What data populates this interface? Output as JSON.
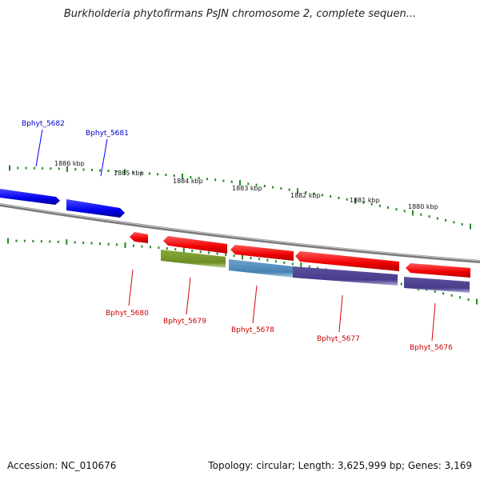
{
  "title": "Burkholderia phytofirmans PsJN chromosome 2, complete sequen...",
  "footer": {
    "accession": "Accession: NC_010676",
    "summary": "Topology: circular; Length: 3,625,999 bp; Genes: 3,169"
  },
  "colors": {
    "forward_gene": "#0000ff",
    "reverse_gene": "#ff0000",
    "cds_olive": "#6b8e23",
    "cds_blue": "#4682b4",
    "cds_purple": "#483d8b",
    "backbone": "#888888",
    "tick": "#228b22"
  },
  "scale_labels": [
    "1886 kbp",
    "1885 kbp",
    "1884 kbp",
    "1883 kbp",
    "1882 kbp",
    "1881 kbp",
    "1880 kbp"
  ],
  "genes": [
    {
      "label": "Bphyt_5682",
      "strand": "forward"
    },
    {
      "label": "Bphyt_5681",
      "strand": "forward"
    },
    {
      "label": "Bphyt_5680",
      "strand": "reverse"
    },
    {
      "label": "Bphyt_5679",
      "strand": "reverse"
    },
    {
      "label": "Bphyt_5678",
      "strand": "reverse"
    },
    {
      "label": "Bphyt_5677",
      "strand": "reverse"
    },
    {
      "label": "Bphyt_5676",
      "strand": "reverse"
    }
  ]
}
